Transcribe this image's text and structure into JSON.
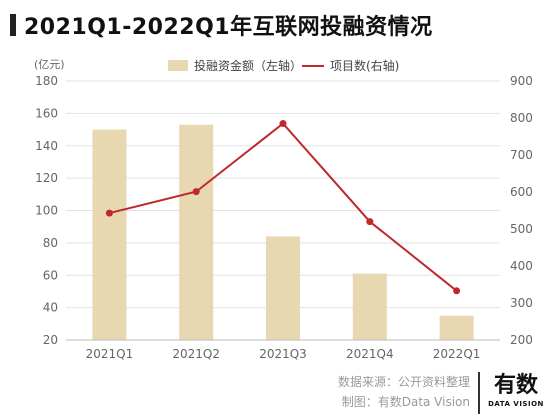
{
  "title": "2021Q1-2022Q1年互联网投融资情况",
  "source_line": "数据来源：公开资料整理",
  "credit_line": "制图：有数Data Vision",
  "brand": {
    "cn": "有数",
    "en": "DATA VISION"
  },
  "colors": {
    "bar": "#e8d8b2",
    "line": "#c0282d",
    "grid": "#e2e2e2",
    "axis_text": "#666666"
  },
  "chart_data": {
    "type": "bar",
    "categories": [
      "2021Q1",
      "2021Q2",
      "2021Q3",
      "2021Q4",
      "2022Q1"
    ],
    "left_axis": {
      "unit": "(亿元)",
      "min": 20,
      "max": 180,
      "ticks": [
        20,
        40,
        60,
        80,
        100,
        120,
        140,
        160,
        180
      ]
    },
    "right_axis": {
      "min": 200,
      "max": 900,
      "ticks": [
        200,
        300,
        400,
        500,
        600,
        700,
        800,
        900
      ]
    },
    "series": [
      {
        "name": "投融资金额（左轴）",
        "type": "bar",
        "axis": "left",
        "values": [
          150,
          153,
          84,
          61,
          35
        ]
      },
      {
        "name": "项目数(右轴)",
        "type": "line",
        "axis": "right",
        "values": [
          543,
          601,
          785,
          520,
          333
        ]
      }
    ],
    "grid": true,
    "legend": "top-center"
  }
}
